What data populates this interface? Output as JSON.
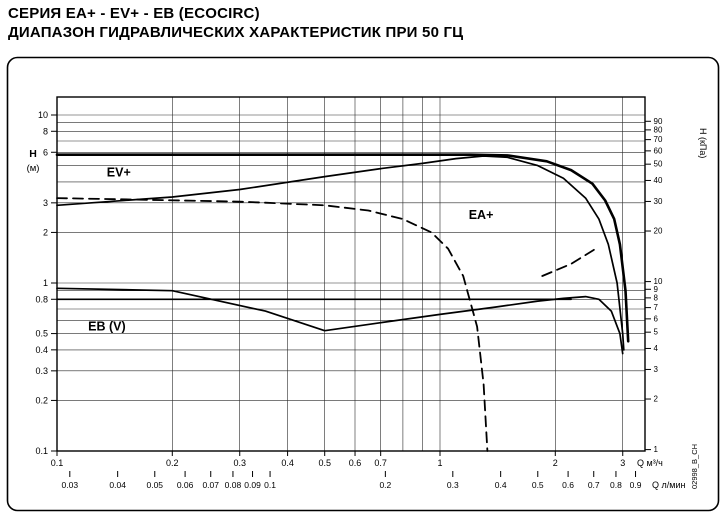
{
  "page": {
    "title_line1": "СЕРИЯ EA+ - EV+ - EB (ECOCIRC)",
    "title_line2": "ДИАПАЗОН ГИДРАВЛИЧЕСКИХ ХАРАКТЕРИСТИК ПРИ 50 ГЦ"
  },
  "chart_data": {
    "type": "line",
    "scale": "log-log",
    "title": "СЕРИЯ EA+ - EV+ - EB (ECOCIRC) — ДИАПАЗОН ГИДРАВЛИЧЕСКИХ ХАРАКТЕРИСТИК ПРИ 50 ГЦ",
    "x_axis": {
      "unit_primary": "Q м³/ч",
      "ticks_m3h": [
        0.1,
        0.2,
        0.3,
        0.4,
        0.5,
        0.6,
        0.7,
        1,
        2,
        3
      ],
      "unit_secondary": "Q л/мин",
      "ticks_secondary": [
        0.03,
        0.04,
        0.05,
        0.06,
        0.07,
        0.08,
        0.09,
        0.1,
        0.2,
        0.3,
        0.4,
        0.5,
        0.6,
        0.7,
        0.8,
        0.9
      ],
      "secondary_to_m3h_factor": 3.6,
      "range_m3h": [
        0.1,
        3.43
      ]
    },
    "y_axis_left": {
      "unit": "H (м)",
      "unit_lines": [
        "H",
        "(м)"
      ],
      "ticks_m": [
        10,
        8,
        6,
        3,
        2,
        1,
        0.8,
        0.5,
        0.4,
        0.3,
        0.2,
        0.1
      ],
      "range_m": [
        0.1,
        12.8
      ]
    },
    "y_axis_right": {
      "unit": "H (кПа)",
      "ticks_kpa": [
        90,
        80,
        70,
        60,
        50,
        40,
        30,
        20,
        10,
        9,
        8,
        7,
        6,
        5,
        4,
        3,
        2,
        1
      ],
      "kpa_per_m": 9.81
    },
    "zones": [
      {
        "label": "EV+",
        "q_m3h": 0.145,
        "h_m": 4.3
      },
      {
        "label": "EA+",
        "q_m3h": 1.28,
        "h_m": 2.4
      },
      {
        "label": "EB (V)",
        "q_m3h": 0.135,
        "h_m": 0.52
      }
    ],
    "curves": [
      {
        "name": "ev-plus-max-envelope",
        "style": "solid",
        "width": 2.6,
        "points_q_h": [
          [
            0.1,
            5.8
          ],
          [
            1.2,
            5.8
          ],
          [
            1.5,
            5.75
          ],
          [
            1.9,
            5.3
          ],
          [
            2.2,
            4.7
          ],
          [
            2.5,
            3.9
          ],
          [
            2.7,
            3.1
          ],
          [
            2.85,
            2.4
          ],
          [
            2.95,
            1.7
          ],
          [
            3.05,
            0.9
          ],
          [
            3.1,
            0.45
          ]
        ]
      },
      {
        "name": "ea-plus-max",
        "style": "solid",
        "width": 1.7,
        "points_q_h": [
          [
            0.1,
            2.9
          ],
          [
            0.2,
            3.25
          ],
          [
            0.3,
            3.6
          ],
          [
            0.5,
            4.3
          ],
          [
            0.7,
            4.8
          ],
          [
            0.9,
            5.15
          ],
          [
            1.1,
            5.5
          ],
          [
            1.3,
            5.7
          ],
          [
            1.5,
            5.6
          ],
          [
            1.8,
            5.0
          ],
          [
            2.1,
            4.2
          ],
          [
            2.4,
            3.2
          ],
          [
            2.6,
            2.4
          ],
          [
            2.75,
            1.7
          ],
          [
            2.9,
            1.0
          ],
          [
            3.0,
            0.5
          ],
          [
            3.02,
            0.4
          ]
        ]
      },
      {
        "name": "ev-plus-min-boundary",
        "style": "dashed",
        "width": 1.8,
        "points_q_h": [
          [
            0.1,
            3.2
          ],
          [
            0.3,
            3.05
          ],
          [
            0.5,
            2.9
          ],
          [
            0.65,
            2.7
          ],
          [
            0.8,
            2.4
          ],
          [
            0.95,
            2.0
          ],
          [
            1.05,
            1.6
          ],
          [
            1.15,
            1.1
          ],
          [
            1.25,
            0.55
          ],
          [
            1.3,
            0.25
          ],
          [
            1.33,
            0.1
          ]
        ]
      },
      {
        "name": "eb-max",
        "style": "solid",
        "width": 1.7,
        "points_q_h": [
          [
            0.1,
            0.93
          ],
          [
            0.2,
            0.9
          ],
          [
            0.35,
            0.68
          ],
          [
            0.5,
            0.52
          ],
          [
            0.7,
            0.58
          ],
          [
            1.0,
            0.65
          ],
          [
            1.4,
            0.72
          ],
          [
            1.8,
            0.78
          ],
          [
            2.1,
            0.81
          ],
          [
            2.4,
            0.83
          ],
          [
            2.6,
            0.8
          ],
          [
            2.8,
            0.68
          ],
          [
            2.95,
            0.5
          ],
          [
            3.0,
            0.38
          ]
        ]
      },
      {
        "name": "eb-flat",
        "style": "solid",
        "width": 1.7,
        "points_q_h": [
          [
            0.1,
            0.8
          ],
          [
            2.2,
            0.8
          ]
        ]
      },
      {
        "name": "ea-plus-min-boundary",
        "style": "dashed",
        "width": 1.8,
        "points_q_h": [
          [
            1.85,
            1.1
          ],
          [
            2.2,
            1.3
          ],
          [
            2.55,
            1.6
          ]
        ]
      }
    ],
    "side_code": "02998_B_CH"
  }
}
